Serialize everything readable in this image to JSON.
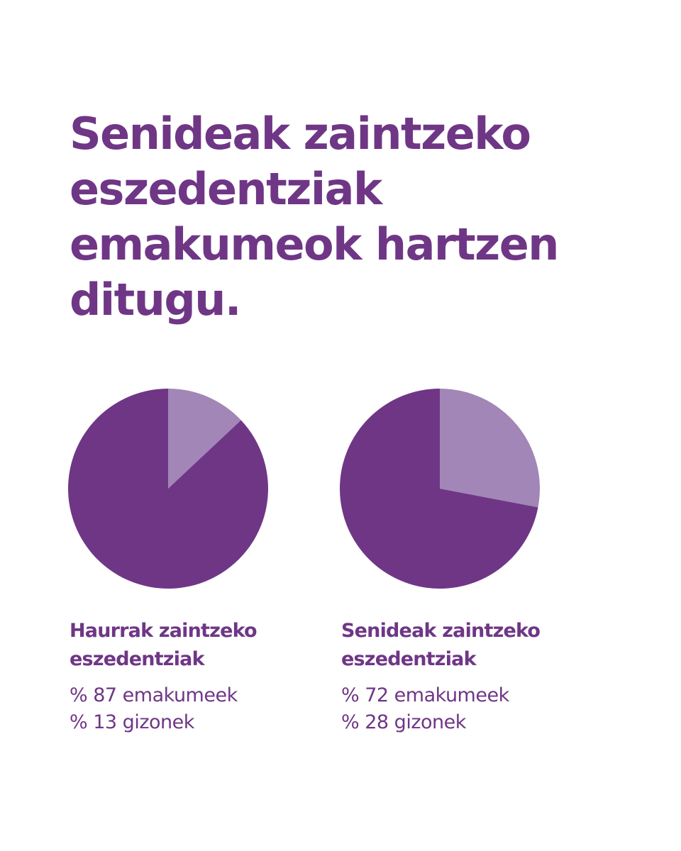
{
  "headline": {
    "lines": [
      "Senideak zaintzeko",
      "eszedentziak",
      "emakumeok hartzen",
      "ditugu."
    ]
  },
  "colors": {
    "primary": "#6f3686",
    "secondary": "#a286b7",
    "background": "#ffffff"
  },
  "chart_data": [
    {
      "type": "pie",
      "title_lines": [
        "Haurrak zaintzeko",
        "eszedentziak"
      ],
      "slices": [
        {
          "name": "emakumeek",
          "value": 87,
          "color": "#6f3686"
        },
        {
          "name": "gizonek",
          "value": 13,
          "color": "#a286b7"
        }
      ],
      "labels": [
        "% 87 emakumeek",
        "% 13 gizonek"
      ]
    },
    {
      "type": "pie",
      "title_lines": [
        "Senideak zaintzeko",
        "eszedentziak"
      ],
      "slices": [
        {
          "name": "emakumeek",
          "value": 72,
          "color": "#6f3686"
        },
        {
          "name": "gizonek",
          "value": 28,
          "color": "#a286b7"
        }
      ],
      "labels": [
        "% 72 emakumeek",
        "% 28 gizonek"
      ]
    }
  ]
}
